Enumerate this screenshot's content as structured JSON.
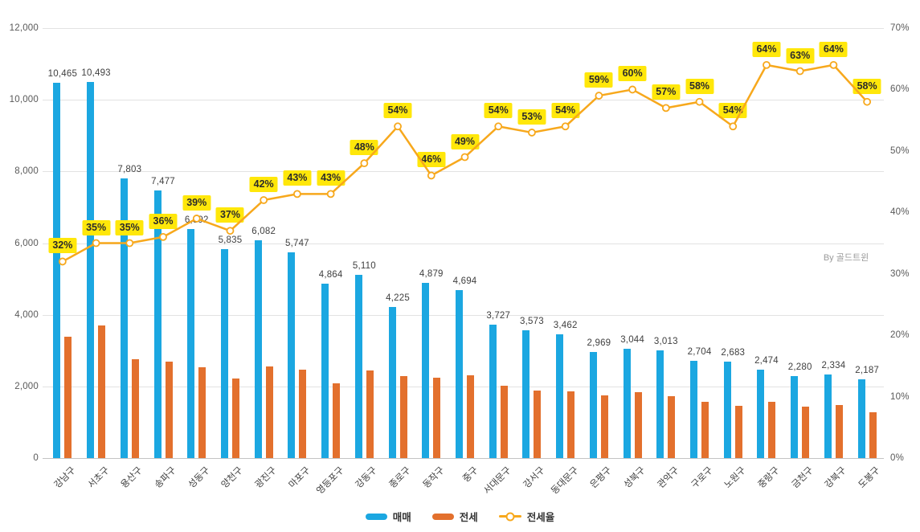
{
  "watermark": "By 골드트윈",
  "chart_data": {
    "type": "bar",
    "variant": "grouped-bar-with-line-combo",
    "title": "",
    "categories": [
      "강남구",
      "서초구",
      "용산구",
      "송파구",
      "성동구",
      "양천구",
      "광진구",
      "마포구",
      "영등포구",
      "강동구",
      "종로구",
      "동작구",
      "중구",
      "서대문구",
      "강서구",
      "동대문구",
      "은평구",
      "성북구",
      "관악구",
      "구로구",
      "노원구",
      "중랑구",
      "금천구",
      "강북구",
      "도봉구"
    ],
    "series": [
      {
        "name": "매매",
        "type": "bar",
        "axis": "left",
        "color": "#1ba7e1",
        "values": [
          10465,
          10493,
          7803,
          7477,
          6392,
          5835,
          6082,
          5747,
          4864,
          5110,
          4225,
          4879,
          4694,
          3727,
          3573,
          3462,
          2969,
          3044,
          3013,
          2704,
          2683,
          2474,
          2280,
          2334,
          2187
        ],
        "labels": [
          "10,465",
          "10,493",
          "7,803",
          "7,477",
          "6,392",
          "5,835",
          "6,082",
          "5,747",
          "4,864",
          "5,110",
          "4,225",
          "4,879",
          "4,694",
          "3,727",
          "3,573",
          "3,462",
          "2,969",
          "3,044",
          "3,013",
          "2,704",
          "2,683",
          "2,474",
          "2,280",
          "2,334",
          "2,187"
        ]
      },
      {
        "name": "전세",
        "type": "bar",
        "axis": "left",
        "color": "#e3702d",
        "estimated": true,
        "values": [
          3380,
          3700,
          2770,
          2690,
          2540,
          2220,
          2550,
          2470,
          2090,
          2450,
          2280,
          2240,
          2300,
          2010,
          1890,
          1870,
          1750,
          1830,
          1720,
          1570,
          1450,
          1580,
          1440,
          1490,
          1270
        ]
      },
      {
        "name": "전세율",
        "type": "line",
        "axis": "right",
        "color": "#f7a81c",
        "marker": "open-circle",
        "label_bg": "#ffe70a",
        "values": [
          32,
          35,
          35,
          36,
          39,
          37,
          42,
          43,
          43,
          48,
          54,
          46,
          49,
          54,
          53,
          54,
          59,
          60,
          57,
          58,
          54,
          64,
          63,
          64,
          58
        ],
        "labels": [
          "32%",
          "35%",
          "35%",
          "36%",
          "39%",
          "37%",
          "42%",
          "43%",
          "43%",
          "48%",
          "54%",
          "46%",
          "49%",
          "54%",
          "53%",
          "54%",
          "59%",
          "60%",
          "57%",
          "58%",
          "54%",
          "64%",
          "63%",
          "64%",
          "58%"
        ]
      }
    ],
    "left_axis": {
      "min": 0,
      "max": 12000,
      "step": 2000,
      "tick_labels": [
        "0",
        "2,000",
        "4,000",
        "6,000",
        "8,000",
        "10,000",
        "12,000"
      ]
    },
    "right_axis": {
      "min": 0,
      "max": 70,
      "step": 10,
      "tick_labels": [
        "0%",
        "10%",
        "20%",
        "30%",
        "40%",
        "50%",
        "60%",
        "70%"
      ]
    },
    "grid": "horizontal",
    "legend_position": "bottom"
  },
  "legend": {
    "items": [
      {
        "label": "매매",
        "kind": "bar-swatch",
        "color": "#1ba7e1"
      },
      {
        "label": "전세",
        "kind": "bar-swatch",
        "color": "#e3702d"
      },
      {
        "label": "전세율",
        "kind": "line-swatch",
        "color": "#f7a81c"
      }
    ]
  }
}
